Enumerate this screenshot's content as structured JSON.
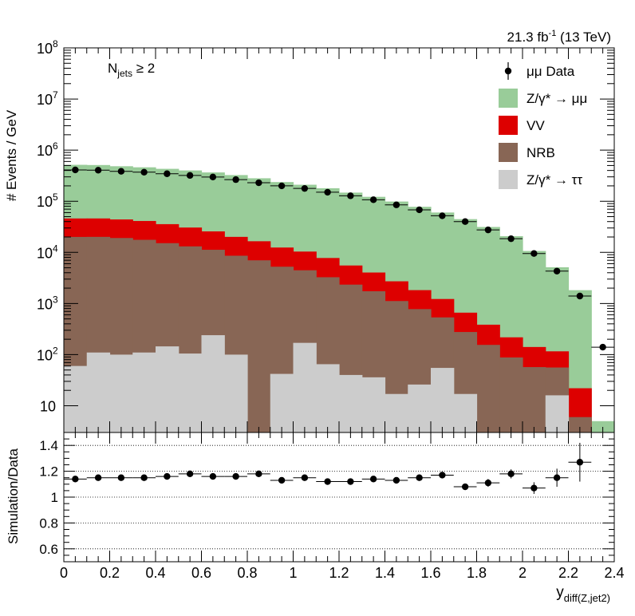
{
  "lumi_label": "21.3 fb",
  "lumi_exp": "-1",
  "energy_label": "(13 TeV)",
  "selection": {
    "main": "N",
    "sub": "jets",
    "rel": "≥ 2"
  },
  "legend": {
    "data": "μμ Data",
    "zmumu": "Z/γ* → μμ",
    "vv": "VV",
    "nrb": "NRB",
    "ztautau": "Z/γ* → ττ"
  },
  "colors": {
    "zmumu": "#99cc99",
    "vv": "#dd0000",
    "nrb": "#886655",
    "ztautau": "#cccccc",
    "data": "#000000"
  },
  "chart_data": [
    {
      "type": "bar",
      "subtype": "stacked-histogram-log",
      "ylabel": "# Events / GeV",
      "xlabel": "y_diff(Z,jet2)",
      "ylim": [
        3,
        100000000
      ],
      "yscale": "log",
      "xlim": [
        0,
        2.4
      ],
      "bin_edges": [
        0,
        0.1,
        0.2,
        0.3,
        0.4,
        0.5,
        0.6,
        0.7,
        0.8,
        0.9,
        1.0,
        1.1,
        1.2,
        1.3,
        1.4,
        1.5,
        1.6,
        1.7,
        1.8,
        1.9,
        2.0,
        2.1,
        2.2,
        2.3,
        2.4
      ],
      "series": [
        {
          "name": "Z/γ* → ττ",
          "key": "ztautau",
          "values": [
            60,
            110,
            100,
            110,
            145,
            105,
            240,
            100,
            0,
            42,
            170,
            65,
            40,
            36,
            17,
            26,
            55,
            17,
            0,
            0,
            0,
            16,
            0,
            0
          ]
        },
        {
          "name": "NRB",
          "key": "nrb",
          "values": [
            20000,
            20000,
            19000,
            17500,
            15000,
            13000,
            11000,
            8500,
            7000,
            5200,
            4300,
            3200,
            2300,
            1700,
            1100,
            750,
            480,
            260,
            155,
            88,
            57,
            40,
            6,
            0
          ]
        },
        {
          "name": "VV",
          "key": "vv",
          "values": [
            26000,
            26000,
            25000,
            23500,
            20500,
            17500,
            14500,
            11500,
            9500,
            7200,
            5900,
            4500,
            3200,
            2300,
            1600,
            1050,
            690,
            385,
            230,
            130,
            84,
            60,
            16,
            0
          ]
        },
        {
          "name": "Z/γ* → μμ",
          "key": "zmumu",
          "values": [
            470000,
            465000,
            440000,
            420000,
            395000,
            370000,
            340000,
            305000,
            265000,
            225000,
            200000,
            172000,
            142000,
            118000,
            96000,
            76000,
            59000,
            44000,
            31000,
            20500,
            10500,
            5000,
            1800,
            5
          ]
        }
      ],
      "data": {
        "name": "μμ Data",
        "y": [
          410000,
          405000,
          385000,
          370000,
          345000,
          320000,
          298000,
          265000,
          230000,
          200000,
          178000,
          150000,
          128000,
          107000,
          85000,
          68000,
          52000,
          40000,
          27500,
          18500,
          9500,
          4300,
          1400,
          140
        ]
      }
    },
    {
      "type": "scatter",
      "subtype": "ratio-with-errors",
      "ylabel": "Simulation/Data",
      "xlabel": "y_diff(Z,jet2)",
      "ylim": [
        0.5,
        1.5
      ],
      "xlim": [
        0,
        2.4
      ],
      "yticks": [
        0.6,
        0.8,
        1,
        1.2,
        1.4
      ],
      "xticks": [
        0,
        0.2,
        0.4,
        0.6,
        0.8,
        1,
        1.2,
        1.4,
        1.6,
        1.8,
        2,
        2.2,
        2.4
      ],
      "x": [
        0.05,
        0.15,
        0.25,
        0.35,
        0.45,
        0.55,
        0.65,
        0.75,
        0.85,
        0.95,
        1.05,
        1.15,
        1.25,
        1.35,
        1.45,
        1.55,
        1.65,
        1.75,
        1.85,
        1.95,
        2.05,
        2.15,
        2.25
      ],
      "y": [
        1.14,
        1.15,
        1.15,
        1.15,
        1.16,
        1.18,
        1.16,
        1.16,
        1.18,
        1.13,
        1.15,
        1.12,
        1.12,
        1.14,
        1.13,
        1.15,
        1.17,
        1.08,
        1.11,
        1.18,
        1.07,
        1.15,
        1.27
      ],
      "yerr": [
        0.01,
        0.01,
        0.01,
        0.01,
        0.01,
        0.01,
        0.01,
        0.01,
        0.01,
        0.01,
        0.01,
        0.01,
        0.01,
        0.01,
        0.01,
        0.015,
        0.02,
        0.025,
        0.03,
        0.035,
        0.045,
        0.07,
        0.15
      ],
      "gridlines_y": [
        0.6,
        0.8,
        1,
        1.2,
        1.4
      ]
    }
  ],
  "axis_labels": {
    "top_ylabel": "# Events / GeV",
    "bottom_ylabel": "Simulation/Data",
    "xlabel_main": "y",
    "xlabel_sub": "diff(Z,jet2)"
  },
  "top_yticks": [
    {
      "v": 10,
      "base": "10",
      "exp": ""
    },
    {
      "v": 100,
      "base": "10",
      "exp": "2"
    },
    {
      "v": 1000,
      "base": "10",
      "exp": "3"
    },
    {
      "v": 10000,
      "base": "10",
      "exp": "4"
    },
    {
      "v": 100000,
      "base": "10",
      "exp": "5"
    },
    {
      "v": 1000000,
      "base": "10",
      "exp": "6"
    },
    {
      "v": 10000000,
      "base": "10",
      "exp": "7"
    },
    {
      "v": 100000000,
      "base": "10",
      "exp": "8"
    }
  ],
  "bottom_ytick_labels": [
    "0.6",
    "0.8",
    "1",
    "1.2",
    "1.4"
  ],
  "xtick_labels": [
    "0",
    "0.2",
    "0.4",
    "0.6",
    "0.8",
    "1",
    "1.2",
    "1.4",
    "1.6",
    "1.8",
    "2",
    "2.2",
    "2.4"
  ]
}
